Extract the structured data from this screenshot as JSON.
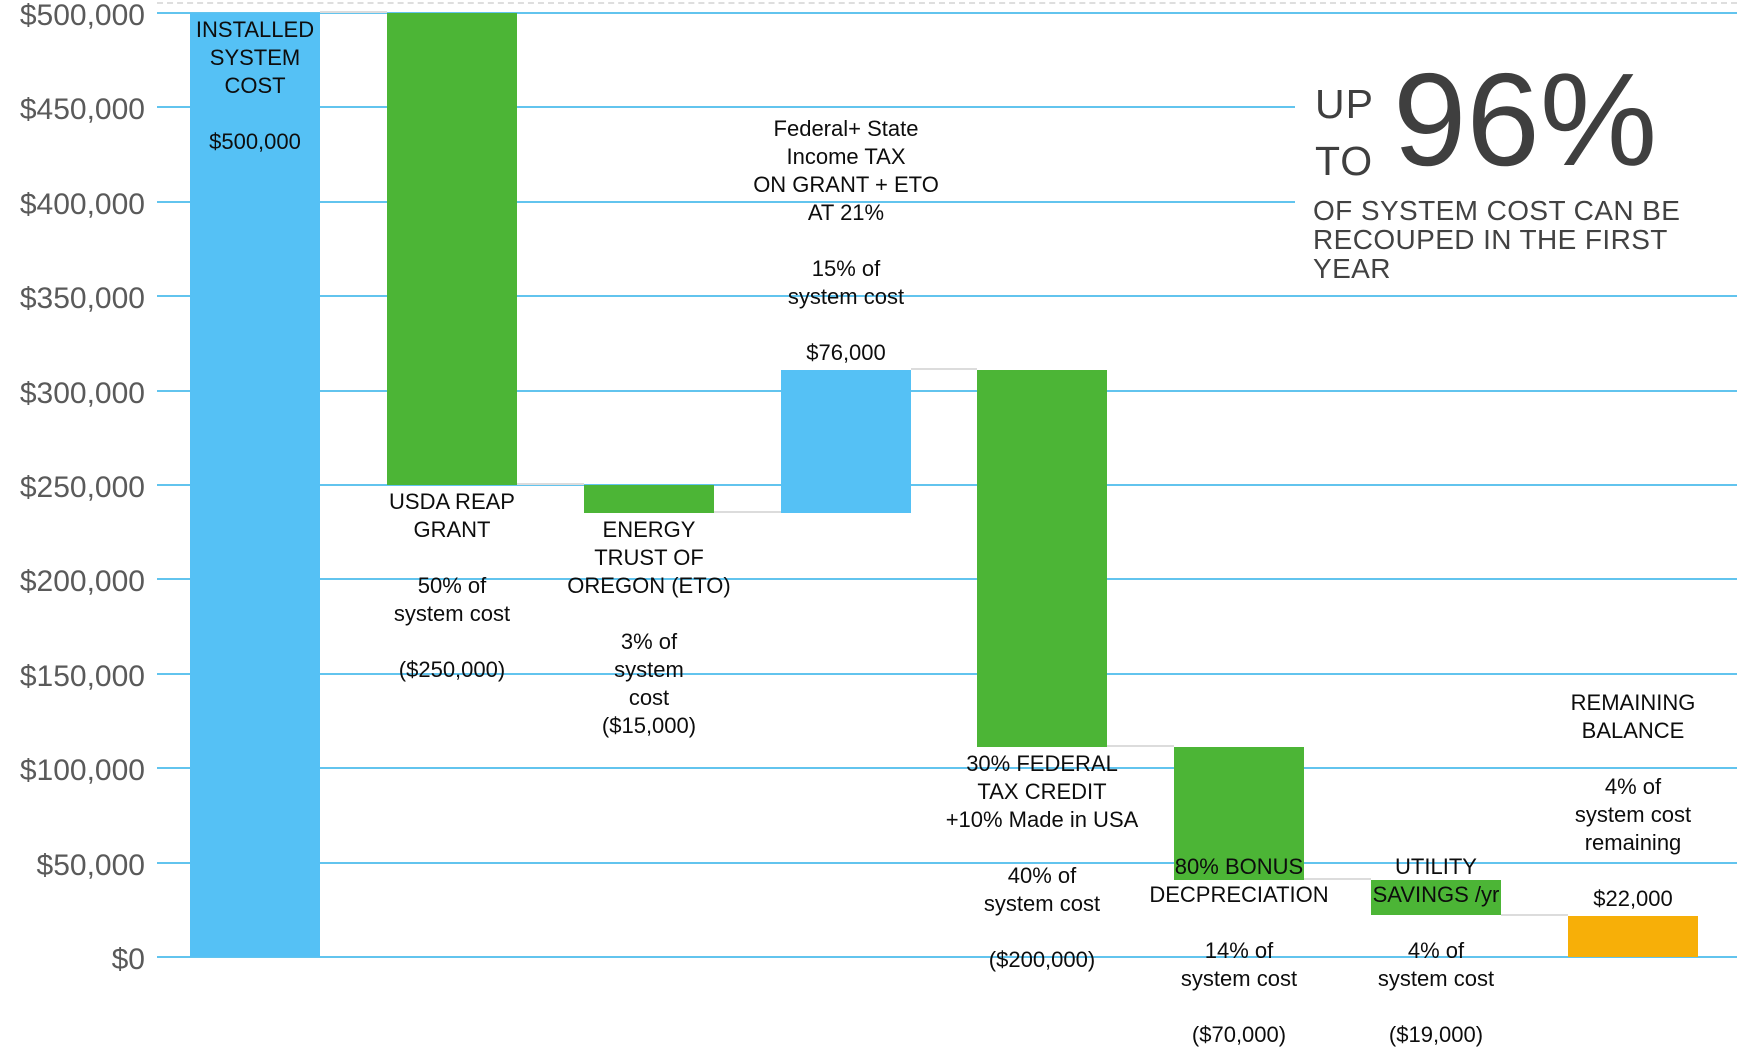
{
  "headline": {
    "prefix": "UP\nTO",
    "big_value": "96%",
    "subtitle": "OF SYSTEM COST CAN BE\nRECOUPED IN THE FIRST YEAR"
  },
  "chart_data": {
    "type": "bar",
    "subtype": "waterfall",
    "title": "UP TO 96% OF SYSTEM COST CAN BE RECOUPED IN THE FIRST YEAR",
    "currency": "USD",
    "ylim": [
      0,
      500000
    ],
    "ytick_step": 50000,
    "ytick_labels": [
      "$0",
      "$50,000",
      "$100,000",
      "$150,000",
      "$200,000",
      "$250,000",
      "$300,000",
      "$350,000",
      "$400,000",
      "$450,000",
      "$500,000"
    ],
    "grid": true,
    "legend": false,
    "colors": {
      "blue": "#55c1f5",
      "green": "#4cb536",
      "orange": "#f7af08",
      "gridline": "#62c4ee",
      "connector": "#dcdcdc",
      "axis_label": "#5a5a5a",
      "headline_text": "#3f3f3f",
      "bar_label_text": "#0d0d0d"
    },
    "bars": [
      {
        "name": "installed-system-cost",
        "color": "blue",
        "start": 0,
        "end": 500000,
        "value": 500000,
        "label_placement": "inside-top",
        "label": "INSTALLED\nSYSTEM\nCOST\n\n$500,000"
      },
      {
        "name": "usda-reap-grant",
        "color": "green",
        "start": 250000,
        "end": 500000,
        "value": -250000,
        "label_placement": "below",
        "label": "USDA REAP\nGRANT\n\n50% of\nsystem cost\n\n($250,000)"
      },
      {
        "name": "energy-trust-of-oregon",
        "color": "green",
        "start": 235000,
        "end": 250000,
        "value": -15000,
        "label_placement": "below",
        "label": "ENERGY\nTRUST OF\nOREGON (ETO)\n\n3% of\nsystem\ncost\n($15,000)"
      },
      {
        "name": "federal-state-income-tax",
        "color": "blue",
        "start": 235000,
        "end": 311000,
        "value": 76000,
        "label_placement": "above",
        "label": "Federal+ State\nIncome TAX\nON GRANT + ETO\nAT 21%\n\n15% of\nsystem cost\n\n$76,000"
      },
      {
        "name": "federal-tax-credit",
        "color": "green",
        "start": 111000,
        "end": 311000,
        "value": -200000,
        "label_placement": "below",
        "label": "30% FEDERAL\nTAX CREDIT\n+10% Made in USA\n\n40% of\nsystem cost\n\n($200,000)"
      },
      {
        "name": "bonus-depreciation",
        "color": "green",
        "start": 41000,
        "end": 111000,
        "value": -70000,
        "label_placement": "bottom-raised",
        "label": "80% BONUS\nDECPRECIATION\n\n14% of\nsystem cost\n\n($70,000)"
      },
      {
        "name": "utility-savings",
        "color": "green",
        "start": 22000,
        "end": 41000,
        "value": -19000,
        "label_placement": "top-raised",
        "label": "UTILITY\nSAVINGS /yr\n\n4% of\nsystem cost\n\n($19,000)"
      },
      {
        "name": "remaining-balance",
        "color": "orange",
        "start": 0,
        "end": 22000,
        "value": 22000,
        "label_placement": "above",
        "label": "REMAINING\nBALANCE\n\n4% of\nsystem cost\nremaining\n\n$22,000"
      }
    ],
    "connectors": [
      500000,
      250000,
      235000,
      311000,
      111000,
      41000,
      22000
    ]
  }
}
